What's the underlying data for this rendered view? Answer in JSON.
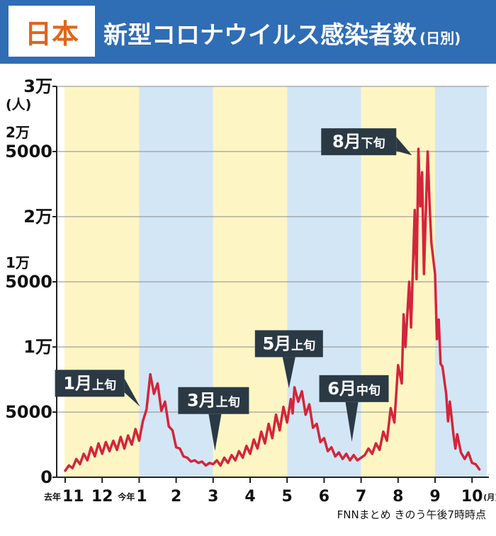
{
  "header": {
    "region_badge": "日本",
    "title": "新型コロナウイルス感染者数",
    "title_suffix": "(日別)"
  },
  "source": "FNNまとめ きのう午後7時時点",
  "colors": {
    "header_bg": "#2f6db5",
    "badge_text": "#e2641b",
    "band_yellow": "#fdf6c4",
    "band_blue": "#d3e6f5",
    "line": "#d4253b",
    "callout_bg": "#2b3944"
  },
  "chart_data": {
    "type": "line",
    "title": "新型コロナウイルス感染者数(日別)",
    "ylim": [
      0,
      30000
    ],
    "y_ticks": [
      {
        "value": 0,
        "label": "0"
      },
      {
        "value": 5000,
        "label": "5000"
      },
      {
        "value": 10000,
        "label": "1万"
      },
      {
        "value": 15000,
        "label": "1万\n5000"
      },
      {
        "value": 20000,
        "label": "2万"
      },
      {
        "value": 25000,
        "label": "2万\n5000"
      },
      {
        "value": 30000,
        "label": "3万"
      }
    ],
    "y_unit": "(人)",
    "x_ticks": [
      {
        "pos": 0,
        "prefix": "去年",
        "label": "11"
      },
      {
        "pos": 1,
        "prefix": "",
        "label": "12"
      },
      {
        "pos": 2,
        "prefix": "今年",
        "label": "1"
      },
      {
        "pos": 3,
        "prefix": "",
        "label": "2"
      },
      {
        "pos": 4,
        "prefix": "",
        "label": "3"
      },
      {
        "pos": 5,
        "prefix": "",
        "label": "4"
      },
      {
        "pos": 6,
        "prefix": "",
        "label": "5"
      },
      {
        "pos": 7,
        "prefix": "",
        "label": "6"
      },
      {
        "pos": 8,
        "prefix": "",
        "label": "7"
      },
      {
        "pos": 9,
        "prefix": "",
        "label": "8"
      },
      {
        "pos": 10,
        "prefix": "",
        "label": "9"
      },
      {
        "pos": 11,
        "prefix": "",
        "label": "10",
        "suffix": "(月)"
      }
    ],
    "bands": [
      {
        "start": -0.02,
        "end": 2.0,
        "color": "yellow"
      },
      {
        "start": 2.0,
        "end": 4.0,
        "color": "blue"
      },
      {
        "start": 4.0,
        "end": 6.0,
        "color": "yellow"
      },
      {
        "start": 6.0,
        "end": 8.0,
        "color": "blue"
      },
      {
        "start": 8.0,
        "end": 10.0,
        "color": "yellow"
      },
      {
        "start": 10.0,
        "end": 11.4,
        "color": "blue"
      }
    ],
    "x_range": [
      -0.02,
      11.4
    ],
    "series": [
      {
        "points": [
          [
            0.0,
            500
          ],
          [
            0.1,
            900
          ],
          [
            0.2,
            700
          ],
          [
            0.3,
            1400
          ],
          [
            0.4,
            1000
          ],
          [
            0.5,
            1800
          ],
          [
            0.6,
            1300
          ],
          [
            0.7,
            2300
          ],
          [
            0.8,
            1600
          ],
          [
            0.9,
            2600
          ],
          [
            1.0,
            1800
          ],
          [
            1.1,
            2700
          ],
          [
            1.2,
            2000
          ],
          [
            1.3,
            2800
          ],
          [
            1.4,
            2100
          ],
          [
            1.5,
            3100
          ],
          [
            1.6,
            2200
          ],
          [
            1.7,
            3200
          ],
          [
            1.8,
            2500
          ],
          [
            1.9,
            3700
          ],
          [
            2.0,
            2800
          ],
          [
            2.1,
            4300
          ],
          [
            2.2,
            5200
          ],
          [
            2.3,
            7900
          ],
          [
            2.4,
            6400
          ],
          [
            2.5,
            7200
          ],
          [
            2.6,
            5100
          ],
          [
            2.7,
            5800
          ],
          [
            2.8,
            3900
          ],
          [
            2.9,
            3600
          ],
          [
            3.0,
            2300
          ],
          [
            3.1,
            2200
          ],
          [
            3.2,
            1600
          ],
          [
            3.3,
            1500
          ],
          [
            3.4,
            1200
          ],
          [
            3.5,
            1300
          ],
          [
            3.6,
            1100
          ],
          [
            3.7,
            1200
          ],
          [
            3.8,
            900
          ],
          [
            3.9,
            1100
          ],
          [
            4.0,
            1000
          ],
          [
            4.1,
            1300
          ],
          [
            4.2,
            900
          ],
          [
            4.3,
            1500
          ],
          [
            4.4,
            1100
          ],
          [
            4.5,
            1700
          ],
          [
            4.6,
            1300
          ],
          [
            4.7,
            2000
          ],
          [
            4.8,
            1500
          ],
          [
            4.9,
            2400
          ],
          [
            5.0,
            1800
          ],
          [
            5.1,
            2900
          ],
          [
            5.2,
            2200
          ],
          [
            5.3,
            3500
          ],
          [
            5.4,
            2600
          ],
          [
            5.5,
            4100
          ],
          [
            5.6,
            3000
          ],
          [
            5.7,
            4800
          ],
          [
            5.8,
            3600
          ],
          [
            5.9,
            5400
          ],
          [
            6.0,
            4200
          ],
          [
            6.1,
            6000
          ],
          [
            6.15,
            4900
          ],
          [
            6.2,
            6900
          ],
          [
            6.3,
            5800
          ],
          [
            6.4,
            6600
          ],
          [
            6.5,
            4800
          ],
          [
            6.6,
            5600
          ],
          [
            6.7,
            3800
          ],
          [
            6.8,
            4100
          ],
          [
            6.9,
            2700
          ],
          [
            7.0,
            3000
          ],
          [
            7.1,
            2000
          ],
          [
            7.2,
            2300
          ],
          [
            7.3,
            1600
          ],
          [
            7.4,
            1900
          ],
          [
            7.5,
            1400
          ],
          [
            7.6,
            1800
          ],
          [
            7.7,
            1300
          ],
          [
            7.8,
            1700
          ],
          [
            7.9,
            1300
          ],
          [
            8.0,
            1500
          ],
          [
            8.1,
            1700
          ],
          [
            8.2,
            2200
          ],
          [
            8.3,
            1800
          ],
          [
            8.4,
            2600
          ],
          [
            8.5,
            2100
          ],
          [
            8.6,
            3500
          ],
          [
            8.7,
            2800
          ],
          [
            8.8,
            5300
          ],
          [
            8.9,
            4200
          ],
          [
            9.0,
            8600
          ],
          [
            9.1,
            7200
          ],
          [
            9.15,
            12500
          ],
          [
            9.2,
            10000
          ],
          [
            9.3,
            15000
          ],
          [
            9.35,
            11500
          ],
          [
            9.45,
            20500
          ],
          [
            9.5,
            15200
          ],
          [
            9.55,
            25200
          ],
          [
            9.6,
            20800
          ],
          [
            9.65,
            23400
          ],
          [
            9.7,
            15600
          ],
          [
            9.8,
            25000
          ],
          [
            9.85,
            21000
          ],
          [
            9.9,
            18000
          ],
          [
            10.0,
            15600
          ],
          [
            10.05,
            10600
          ],
          [
            10.1,
            12100
          ],
          [
            10.15,
            8700
          ],
          [
            10.2,
            8500
          ],
          [
            10.3,
            6400
          ],
          [
            10.35,
            4300
          ],
          [
            10.4,
            5800
          ],
          [
            10.5,
            3200
          ],
          [
            10.55,
            2200
          ],
          [
            10.6,
            3300
          ],
          [
            10.7,
            1900
          ],
          [
            10.8,
            1400
          ],
          [
            10.9,
            1900
          ],
          [
            11.0,
            1100
          ],
          [
            11.1,
            1000
          ],
          [
            11.2,
            600
          ]
        ]
      }
    ],
    "annotations": [
      {
        "month": "1月",
        "suffix": "上旬",
        "x": 2.1,
        "y": 5200
      },
      {
        "month": "3月",
        "suffix": "上旬",
        "x": 4.05,
        "y": 1700
      },
      {
        "month": "5月",
        "suffix": "上旬",
        "x": 6.05,
        "y": 6500
      },
      {
        "month": "6月",
        "suffix": "中旬",
        "x": 7.75,
        "y": 2400
      },
      {
        "month": "8月",
        "suffix": "下旬",
        "x": 9.45,
        "y": 24500
      }
    ]
  }
}
